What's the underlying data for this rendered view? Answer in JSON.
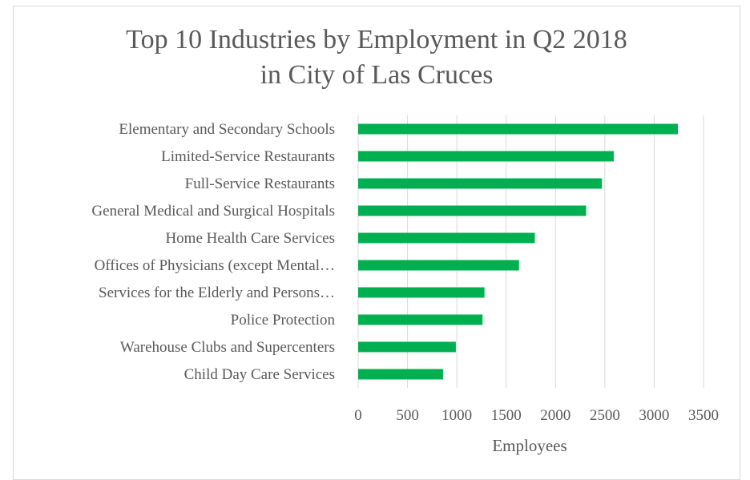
{
  "chart_data": {
    "type": "bar",
    "orientation": "horizontal",
    "title_line1": "Top 10 Industries by Employment in Q2 2018",
    "title_line2": "in City of Las Cruces",
    "categories": [
      "Elementary and Secondary Schools",
      "Limited-Service Restaurants",
      "Full-Service Restaurants",
      "General Medical and Surgical Hospitals",
      "Home Health Care Services",
      "Offices of Physicians (except Mental…",
      "Services for the Elderly and Persons…",
      "Police Protection",
      "Warehouse Clubs and Supercenters",
      "Child Day Care Services"
    ],
    "values": [
      3240,
      2590,
      2470,
      2310,
      1790,
      1630,
      1280,
      1260,
      990,
      860
    ],
    "xlabel": "Employees",
    "ylabel": "",
    "xlim": [
      0,
      3500
    ],
    "xticks": [
      "0",
      "500",
      "1000",
      "1500",
      "2000",
      "2500",
      "3000",
      "3500"
    ],
    "grid": true,
    "legend": "none",
    "bar_color": "#00b050",
    "grid_color": "#d9d9d9",
    "text_color": "#595959"
  }
}
